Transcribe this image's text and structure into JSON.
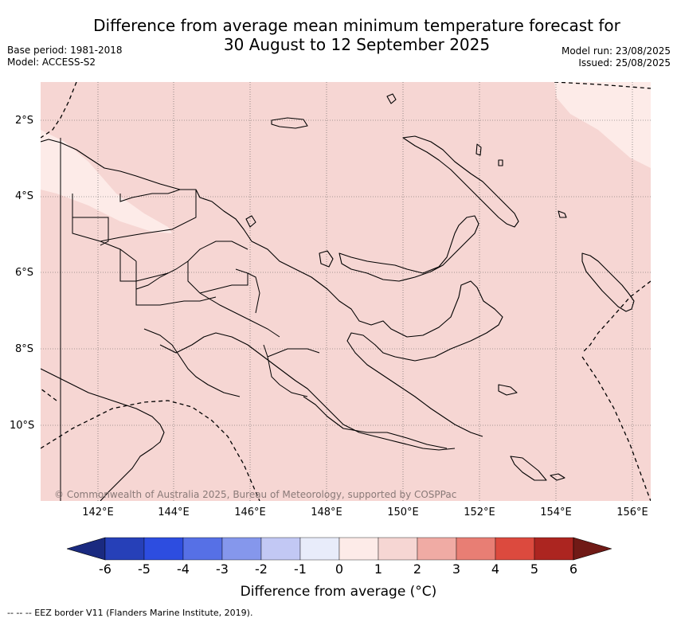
{
  "title_line1": "Difference from average mean minimum temperature forecast for",
  "title_line2": "30 August to 12 September 2025",
  "base_period": "Base period: 1981-2018",
  "model": "Model: ACCESS-S2",
  "model_run": "Model run: 23/08/2025",
  "issued": "Issued: 25/08/2025",
  "copyright": "© Commonwealth of Australia 2025, Bureau of Meteorology, supported by COSPPac",
  "lat_labels": [
    "2°S",
    "4°S",
    "6°S",
    "8°S",
    "10°S"
  ],
  "lon_labels": [
    "142°E",
    "144°E",
    "146°E",
    "148°E",
    "150°E",
    "152°E",
    "154°E",
    "156°E"
  ],
  "colorbar": {
    "ticks": [
      "-6",
      "-5",
      "-4",
      "-3",
      "-2",
      "-1",
      "0",
      "1",
      "2",
      "3",
      "4",
      "5",
      "6"
    ],
    "label": "Difference from average (°C)",
    "colors": [
      "#1a2a80",
      "#2640b8",
      "#2d4de0",
      "#5670e6",
      "#8597ec",
      "#c2c8f4",
      "#e8ecfa",
      "#fdebe8",
      "#f6d6d3",
      "#f0aba4",
      "#e87e74",
      "#dc4a3e",
      "#ac2520",
      "#701a16"
    ]
  },
  "footnote": "-- -- -- EEZ border V11 (Flanders Marine Institute, 2019).",
  "map_colors": {
    "main": "#f6d6d3",
    "light": "#fdebe8"
  }
}
